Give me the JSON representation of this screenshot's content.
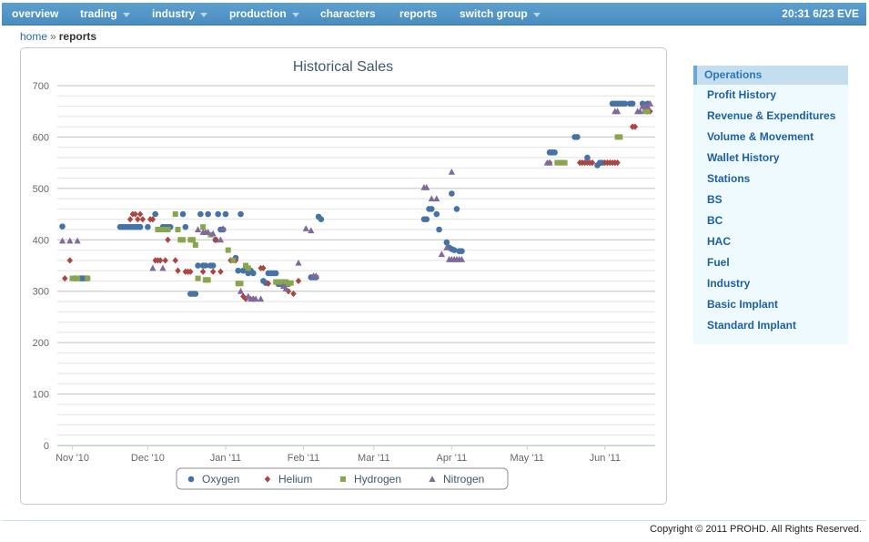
{
  "nav": {
    "items": [
      {
        "label": "overview",
        "dropdown": false
      },
      {
        "label": "trading",
        "dropdown": true
      },
      {
        "label": "industry",
        "dropdown": true
      },
      {
        "label": "production",
        "dropdown": true
      },
      {
        "label": "characters",
        "dropdown": false
      },
      {
        "label": "reports",
        "dropdown": false
      },
      {
        "label": "switch group",
        "dropdown": true
      }
    ],
    "clock": "20:31 6/23 EVE"
  },
  "breadcrumb": {
    "home": "home",
    "separator": "»",
    "current": "reports"
  },
  "sidebar": {
    "header": "Operations",
    "items": [
      "Profit History",
      "Revenue & Expenditures",
      "Volume & Movement",
      "Wallet History",
      "Stations",
      "BS",
      "BC",
      "HAC",
      "Fuel",
      "Industry",
      "Basic Implant",
      "Standard Implant"
    ]
  },
  "footer": {
    "copyright": "Copyright © 2011 PROHD. All Rights Reserved."
  },
  "chart_data": {
    "type": "scatter",
    "title": "Historical Sales",
    "xlabel": "",
    "ylabel": "",
    "xlim": [
      "2010-10-26",
      "2011-06-21"
    ],
    "ylim": [
      0,
      700
    ],
    "y_ticks": [
      0,
      100,
      200,
      300,
      400,
      500,
      600,
      700
    ],
    "x_ticks": [
      {
        "date": "2010-11-01",
        "label": "Nov '10"
      },
      {
        "date": "2010-12-01",
        "label": "Dec '10"
      },
      {
        "date": "2011-01-01",
        "label": "Jan '11"
      },
      {
        "date": "2011-02-01",
        "label": "Feb '11"
      },
      {
        "date": "2011-03-01",
        "label": "Mar '11"
      },
      {
        "date": "2011-04-01",
        "label": "Apr '11"
      },
      {
        "date": "2011-05-01",
        "label": "May '11"
      },
      {
        "date": "2011-06-01",
        "label": "Jun '11"
      }
    ],
    "grid": true,
    "legend_position": "bottom",
    "series": [
      {
        "name": "Oxygen",
        "color": "#4572A7",
        "marker": "circle",
        "points": [
          [
            "2010-10-28",
            426
          ],
          [
            "2010-11-02",
            325
          ],
          [
            "2010-11-04",
            325
          ],
          [
            "2010-11-05",
            325
          ],
          [
            "2010-11-06",
            325
          ],
          [
            "2010-11-07",
            325
          ],
          [
            "2010-11-20",
            425
          ],
          [
            "2010-11-21",
            425
          ],
          [
            "2010-11-22",
            425
          ],
          [
            "2010-11-23",
            425
          ],
          [
            "2010-11-24",
            425
          ],
          [
            "2010-11-25",
            425
          ],
          [
            "2010-11-26",
            425
          ],
          [
            "2010-11-27",
            425
          ],
          [
            "2010-11-28",
            425
          ],
          [
            "2010-12-01",
            425
          ],
          [
            "2010-12-04",
            450
          ],
          [
            "2010-12-07",
            425
          ],
          [
            "2010-12-08",
            425
          ],
          [
            "2010-12-09",
            425
          ],
          [
            "2010-12-10",
            425
          ],
          [
            "2010-12-15",
            450
          ],
          [
            "2010-12-16",
            425
          ],
          [
            "2010-12-18",
            295
          ],
          [
            "2010-12-19",
            295
          ],
          [
            "2010-12-20",
            295
          ],
          [
            "2010-12-21",
            350
          ],
          [
            "2010-12-22",
            450
          ],
          [
            "2010-12-23",
            350
          ],
          [
            "2010-12-24",
            350
          ],
          [
            "2010-12-25",
            450
          ],
          [
            "2010-12-26",
            350
          ],
          [
            "2010-12-27",
            350
          ],
          [
            "2010-12-28",
            400
          ],
          [
            "2010-12-29",
            450
          ],
          [
            "2010-12-30",
            420
          ],
          [
            "2010-12-31",
            420
          ],
          [
            "2011-01-01",
            450
          ],
          [
            "2011-01-05",
            365
          ],
          [
            "2011-01-06",
            340
          ],
          [
            "2011-01-07",
            450
          ],
          [
            "2011-01-08",
            340
          ],
          [
            "2011-01-10",
            335
          ],
          [
            "2011-01-11",
            340
          ],
          [
            "2011-01-12",
            335
          ],
          [
            "2011-01-16",
            320
          ],
          [
            "2011-01-17",
            316
          ],
          [
            "2011-01-18",
            335
          ],
          [
            "2011-01-19",
            335
          ],
          [
            "2011-01-20",
            335
          ],
          [
            "2011-01-21",
            335
          ],
          [
            "2011-01-22",
            314
          ],
          [
            "2011-01-23",
            314
          ],
          [
            "2011-01-24",
            314
          ],
          [
            "2011-01-25",
            314
          ],
          [
            "2011-01-26",
            314
          ],
          [
            "2011-02-04",
            327
          ],
          [
            "2011-02-05",
            327
          ],
          [
            "2011-02-06",
            327
          ],
          [
            "2011-02-07",
            445
          ],
          [
            "2011-02-08",
            440
          ],
          [
            "2011-03-21",
            440
          ],
          [
            "2011-03-22",
            440
          ],
          [
            "2011-03-23",
            460
          ],
          [
            "2011-03-24",
            460
          ],
          [
            "2011-03-26",
            450
          ],
          [
            "2011-03-27",
            420
          ],
          [
            "2011-03-30",
            395
          ],
          [
            "2011-03-31",
            385
          ],
          [
            "2011-04-01",
            382
          ],
          [
            "2011-04-02",
            380
          ],
          [
            "2011-04-03",
            460
          ],
          [
            "2011-04-04",
            378
          ],
          [
            "2011-04-05",
            378
          ],
          [
            "2011-04-01",
            490
          ],
          [
            "2011-05-10",
            570
          ],
          [
            "2011-05-11",
            570
          ],
          [
            "2011-05-12",
            570
          ],
          [
            "2011-05-20",
            600
          ],
          [
            "2011-05-21",
            600
          ],
          [
            "2011-05-25",
            560
          ],
          [
            "2011-05-29",
            545
          ],
          [
            "2011-05-30",
            550
          ],
          [
            "2011-05-31",
            550
          ],
          [
            "2011-06-04",
            665
          ],
          [
            "2011-06-05",
            665
          ],
          [
            "2011-06-06",
            665
          ],
          [
            "2011-06-07",
            665
          ],
          [
            "2011-06-08",
            665
          ],
          [
            "2011-06-09",
            665
          ],
          [
            "2011-06-11",
            665
          ],
          [
            "2011-06-12",
            665
          ],
          [
            "2011-06-16",
            665
          ],
          [
            "2011-06-18",
            665
          ]
        ]
      },
      {
        "name": "Helium",
        "color": "#AA4643",
        "marker": "diamond",
        "points": [
          [
            "2010-10-29",
            325
          ],
          [
            "2010-10-31",
            360
          ],
          [
            "2010-11-24",
            440
          ],
          [
            "2010-11-25",
            450
          ],
          [
            "2010-11-26",
            450
          ],
          [
            "2010-11-27",
            440
          ],
          [
            "2010-11-28",
            450
          ],
          [
            "2010-11-29",
            440
          ],
          [
            "2010-12-02",
            440
          ],
          [
            "2010-12-03",
            440
          ],
          [
            "2010-12-04",
            360
          ],
          [
            "2010-12-05",
            360
          ],
          [
            "2010-12-06",
            360
          ],
          [
            "2010-12-08",
            360
          ],
          [
            "2010-12-09",
            400
          ],
          [
            "2010-12-12",
            360
          ],
          [
            "2010-12-13",
            340
          ],
          [
            "2010-12-16",
            338
          ],
          [
            "2010-12-17",
            338
          ],
          [
            "2010-12-18",
            338
          ],
          [
            "2010-12-23",
            338
          ],
          [
            "2010-12-27",
            338
          ],
          [
            "2010-12-28",
            400
          ],
          [
            "2010-12-30",
            338
          ],
          [
            "2011-01-03",
            360
          ],
          [
            "2011-01-05",
            360
          ],
          [
            "2011-01-08",
            290
          ],
          [
            "2011-01-09",
            285
          ],
          [
            "2011-01-12",
            285
          ],
          [
            "2011-01-15",
            345
          ],
          [
            "2011-01-16",
            345
          ],
          [
            "2011-01-18",
            315
          ],
          [
            "2011-01-26",
            300
          ],
          [
            "2011-01-28",
            295
          ],
          [
            "2011-01-30",
            320
          ],
          [
            "2011-05-10",
            550
          ],
          [
            "2011-05-22",
            550
          ],
          [
            "2011-05-23",
            550
          ],
          [
            "2011-05-24",
            550
          ],
          [
            "2011-05-25",
            550
          ],
          [
            "2011-05-26",
            550
          ],
          [
            "2011-05-27",
            550
          ],
          [
            "2011-06-01",
            550
          ],
          [
            "2011-06-02",
            550
          ],
          [
            "2011-06-03",
            550
          ],
          [
            "2011-06-04",
            550
          ],
          [
            "2011-06-05",
            550
          ],
          [
            "2011-06-06",
            550
          ],
          [
            "2011-06-12",
            620
          ],
          [
            "2011-06-13",
            620
          ],
          [
            "2011-06-18",
            650
          ],
          [
            "2011-06-19",
            650
          ]
        ]
      },
      {
        "name": "Hydrogen",
        "color": "#89A54E",
        "marker": "square",
        "points": [
          [
            "2010-11-01",
            325
          ],
          [
            "2010-11-02",
            325
          ],
          [
            "2010-11-03",
            325
          ],
          [
            "2010-11-07",
            325
          ],
          [
            "2010-12-05",
            420
          ],
          [
            "2010-12-06",
            420
          ],
          [
            "2010-12-07",
            420
          ],
          [
            "2010-12-09",
            420
          ],
          [
            "2010-12-12",
            450
          ],
          [
            "2010-12-13",
            420
          ],
          [
            "2010-12-14",
            400
          ],
          [
            "2010-12-15",
            400
          ],
          [
            "2010-12-18",
            400
          ],
          [
            "2010-12-19",
            400
          ],
          [
            "2010-12-20",
            390
          ],
          [
            "2010-12-21",
            325
          ],
          [
            "2010-12-23",
            425
          ],
          [
            "2010-12-24",
            322
          ],
          [
            "2010-12-25",
            322
          ],
          [
            "2010-12-26",
            410
          ],
          [
            "2011-01-02",
            380
          ],
          [
            "2011-01-04",
            360
          ],
          [
            "2011-01-06",
            315
          ],
          [
            "2011-01-07",
            315
          ],
          [
            "2011-01-09",
            350
          ],
          [
            "2011-01-10",
            345
          ],
          [
            "2011-01-21",
            318
          ],
          [
            "2011-01-22",
            318
          ],
          [
            "2011-01-23",
            318
          ],
          [
            "2011-01-24",
            318
          ],
          [
            "2011-01-25",
            318
          ],
          [
            "2011-01-26",
            315
          ],
          [
            "2011-01-27",
            316
          ],
          [
            "2011-05-13",
            550
          ],
          [
            "2011-05-14",
            550
          ],
          [
            "2011-05-15",
            550
          ],
          [
            "2011-05-16",
            550
          ],
          [
            "2011-06-06",
            600
          ],
          [
            "2011-06-07",
            600
          ],
          [
            "2011-06-17",
            650
          ],
          [
            "2011-06-18",
            650
          ]
        ]
      },
      {
        "name": "Nitrogen",
        "color": "#80699B",
        "marker": "triangle",
        "points": [
          [
            "2010-10-28",
            398
          ],
          [
            "2010-10-31",
            398
          ],
          [
            "2010-11-03",
            398
          ],
          [
            "2010-12-03",
            345
          ],
          [
            "2010-12-07",
            345
          ],
          [
            "2010-12-21",
            420
          ],
          [
            "2010-12-23",
            415
          ],
          [
            "2010-12-24",
            415
          ],
          [
            "2010-12-25",
            415
          ],
          [
            "2010-12-27",
            412
          ],
          [
            "2010-12-30",
            400
          ],
          [
            "2010-12-31",
            422
          ],
          [
            "2011-01-07",
            300
          ],
          [
            "2011-01-10",
            290
          ],
          [
            "2011-01-11",
            285
          ],
          [
            "2011-01-12",
            285
          ],
          [
            "2011-01-13",
            285
          ],
          [
            "2011-01-15",
            285
          ],
          [
            "2011-01-24",
            310
          ],
          [
            "2011-01-25",
            305
          ],
          [
            "2011-01-30",
            355
          ],
          [
            "2011-02-02",
            422
          ],
          [
            "2011-02-04",
            418
          ],
          [
            "2011-02-05",
            330
          ],
          [
            "2011-02-06",
            330
          ],
          [
            "2011-03-21",
            502
          ],
          [
            "2011-03-22",
            502
          ],
          [
            "2011-03-24",
            480
          ],
          [
            "2011-03-26",
            480
          ],
          [
            "2011-03-28",
            372
          ],
          [
            "2011-03-30",
            385
          ],
          [
            "2011-03-31",
            362
          ],
          [
            "2011-04-01",
            362
          ],
          [
            "2011-04-02",
            362
          ],
          [
            "2011-04-03",
            362
          ],
          [
            "2011-04-04",
            362
          ],
          [
            "2011-04-05",
            362
          ],
          [
            "2011-04-01",
            532
          ],
          [
            "2011-05-09",
            550
          ],
          [
            "2011-05-10",
            550
          ],
          [
            "2011-06-05",
            650
          ],
          [
            "2011-06-06",
            650
          ],
          [
            "2011-06-14",
            650
          ],
          [
            "2011-06-15",
            650
          ],
          [
            "2011-06-16",
            660
          ],
          [
            "2011-06-17",
            660
          ],
          [
            "2011-06-18",
            660
          ],
          [
            "2011-06-19",
            665
          ]
        ]
      }
    ]
  }
}
